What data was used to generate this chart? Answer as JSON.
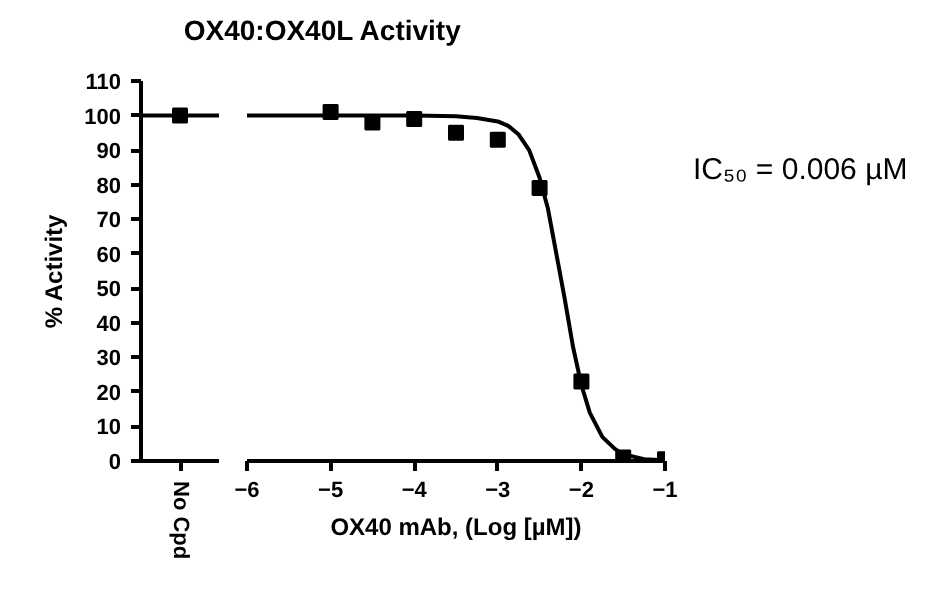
{
  "chart_data": [
    {
      "type": "scatter",
      "ylabel": "% Activity",
      "categories": [
        "No Cpd"
      ],
      "ylim": [
        0,
        110
      ],
      "yticks": [
        0,
        10,
        20,
        30,
        40,
        50,
        60,
        70,
        80,
        90,
        100,
        110
      ],
      "series": [
        {
          "color": "#000000",
          "values": [
            100
          ],
          "marker": "square"
        }
      ],
      "ref_lines": [
        {
          "axis": "y",
          "value": 100,
          "color": "#000000"
        }
      ],
      "grid": false
    },
    {
      "type": "scatter",
      "title": "OX40:OX40L Activity",
      "xlabel": "OX40 mAb, (Log [µM])",
      "annotations": [
        "IC₅₀ = 0.006 µM"
      ],
      "xlim": [
        -6,
        -1
      ],
      "xticks": [
        -6,
        -5,
        -4,
        -3,
        -2,
        -1
      ],
      "ylim": [
        0,
        110
      ],
      "tick_labels": "x",
      "series": [
        {
          "type": "scatter",
          "marker": "square",
          "color": "#000000",
          "x": [
            -5,
            -4.5,
            -4,
            -3.5,
            -3,
            -2.5,
            -2,
            -1.5,
            -1
          ],
          "values": [
            101,
            98,
            99,
            95,
            93,
            79,
            23,
            1,
            0.5
          ]
        },
        {
          "type": "line",
          "color": "#000000",
          "x": [
            -6,
            -4,
            -3.5,
            -3.25,
            -3,
            -2.875,
            -2.75,
            -2.625,
            -2.5,
            -2.4,
            -2.3,
            -2.2,
            -2.1,
            -2,
            -1.9,
            -1.75,
            -1.6,
            -1.5,
            -1.25,
            -1
          ],
          "values": [
            100,
            100,
            99.8,
            99.3,
            98.3,
            97,
            94.5,
            90,
            82,
            73,
            60,
            47,
            33,
            22,
            14,
            7,
            3.5,
            2,
            0.5,
            0.2
          ]
        }
      ],
      "line_style": "solid",
      "grid": false
    }
  ]
}
